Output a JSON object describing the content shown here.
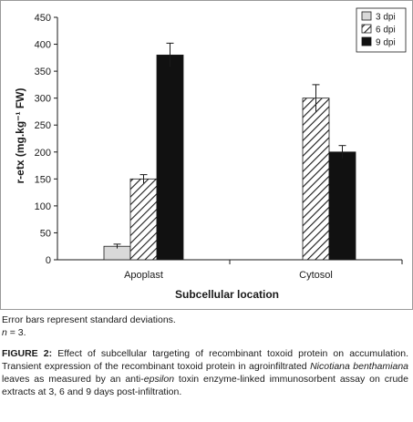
{
  "chart_data": {
    "type": "bar",
    "categories": [
      "Apoplast",
      "Cytosol"
    ],
    "series": [
      {
        "name": "3 dpi",
        "values": [
          25,
          0
        ],
        "errors": [
          4,
          0
        ],
        "fill": "light-gray"
      },
      {
        "name": "6 dpi",
        "values": [
          150,
          300
        ],
        "errors": [
          8,
          25
        ],
        "fill": "diagonal-hatch"
      },
      {
        "name": "9 dpi",
        "values": [
          380,
          200
        ],
        "errors": [
          22,
          12
        ],
        "fill": "black"
      }
    ],
    "xlabel": "Subcellular location",
    "ylabel": "r-etx (mg.kg⁻¹ FW)",
    "ylim": [
      0,
      450
    ],
    "yticks": [
      0,
      50,
      100,
      150,
      200,
      250,
      300,
      350,
      400,
      450
    ],
    "grid": false,
    "legend_position": "top-right"
  },
  "colors": {
    "bar_3dpi": "#d9d9d9",
    "bar_9dpi": "#111111",
    "stroke": "#1a1a1a"
  },
  "caption": {
    "note": "Error bars represent standard deviations.",
    "n_label": "n",
    "n_value": " = 3.",
    "figure_label": "FIGURE 2:",
    "figure_text_part1": " Effect of subcellular targeting of recombinant toxoid protein on accumulation. Transient expression of the recombinant toxoid protein in agroinfiltrated ",
    "figure_text_species": "Nicotiana benthamiana",
    "figure_text_part2": " leaves as measured by an anti-",
    "figure_text_epsilon": "epsilon",
    "figure_text_part3": " toxin enzyme-linked immunosorbent assay on crude extracts at 3, 6 and 9 days post-infiltration."
  }
}
